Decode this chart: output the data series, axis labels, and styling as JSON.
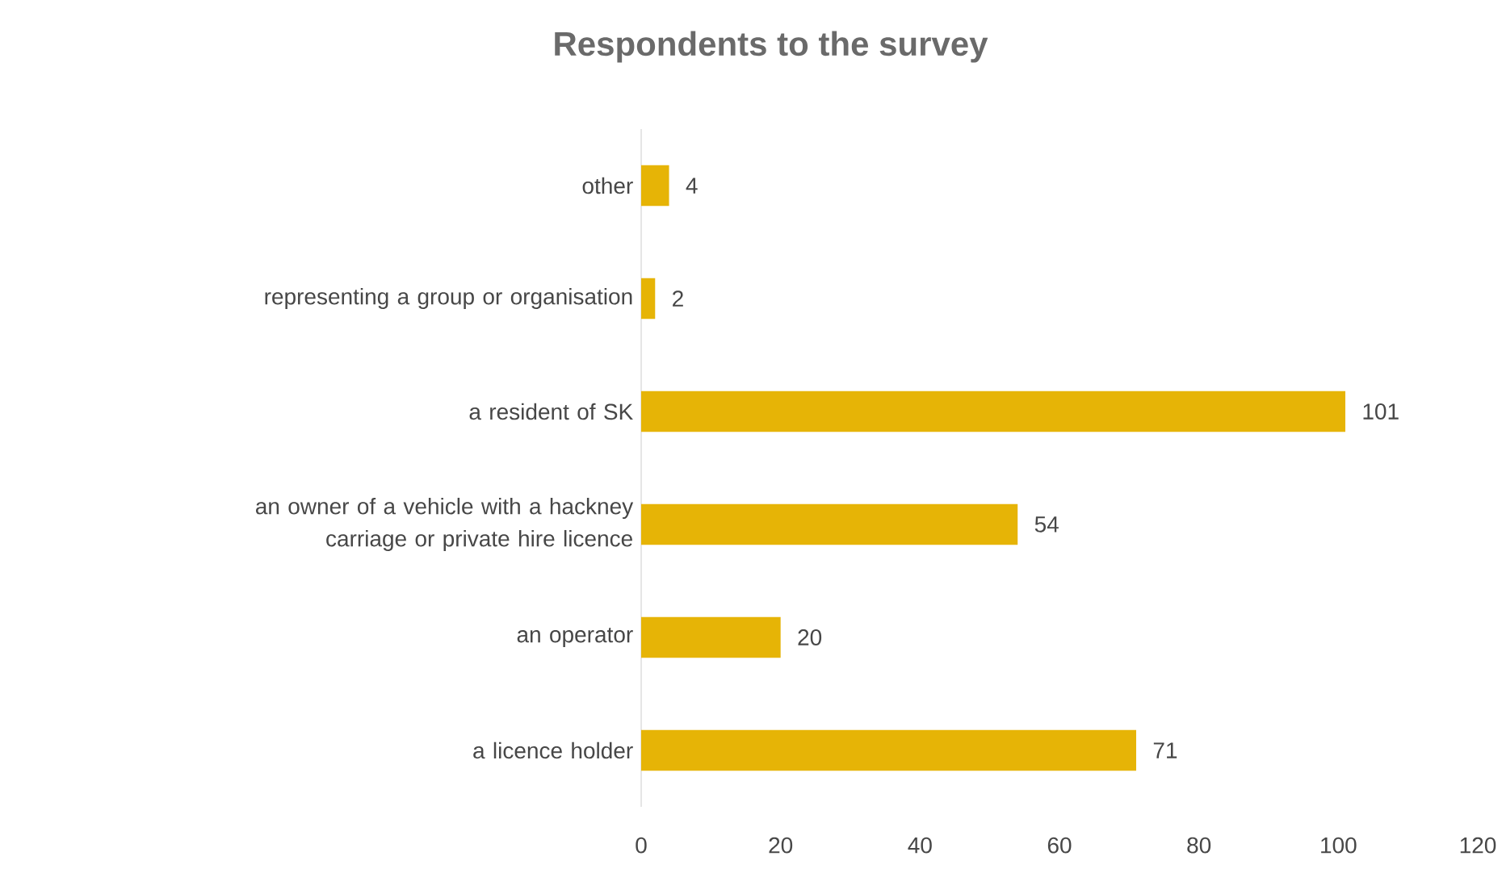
{
  "chart_data": {
    "type": "bar",
    "orientation": "horizontal",
    "title": "Respondents to the survey",
    "categories": [
      "other",
      "representing a group or organisation",
      "a resident of SK",
      "an owner of a vehicle with a hackney carriage or private hire licence",
      "an operator",
      "a licence holder"
    ],
    "values": [
      4,
      2,
      101,
      54,
      20,
      71
    ],
    "color": "#e6b406",
    "xlim": [
      0,
      120
    ],
    "xticks": [
      0,
      20,
      40,
      60,
      80,
      100,
      120
    ],
    "data_labels": true
  }
}
